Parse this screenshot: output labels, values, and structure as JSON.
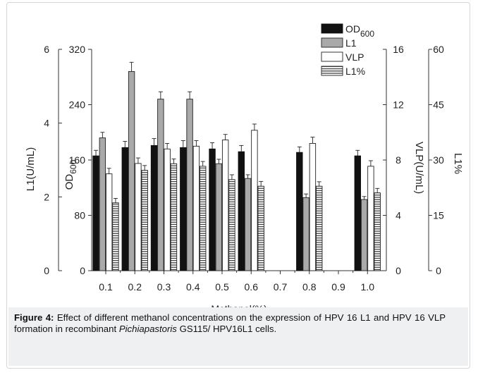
{
  "chart_data": {
    "type": "bar",
    "categories": [
      "0.1",
      "0.2",
      "0.3",
      "0.4",
      "0.5",
      "0.6",
      "0.7",
      "0.8",
      "0.9",
      "1.0"
    ],
    "xlabel": "Methanol(%)",
    "axes": {
      "l1": {
        "label": "L1(U/mL)",
        "min": 0,
        "max": 6,
        "ticks": [
          0,
          2,
          4,
          6
        ]
      },
      "od": {
        "label": "OD",
        "label_sub": "600",
        "min": 0,
        "max": 320,
        "ticks": [
          0,
          80,
          160,
          240,
          320
        ]
      },
      "vlp": {
        "label": "VLP(U/mL)",
        "min": 0,
        "max": 16,
        "ticks": [
          0,
          4,
          8,
          12,
          16
        ]
      },
      "pct": {
        "label": "L1%",
        "min": 0,
        "max": 60,
        "ticks": [
          0,
          15,
          30,
          45,
          60
        ]
      }
    },
    "series": [
      {
        "name": "OD",
        "name_sub": "600",
        "axis": "od",
        "style": "black",
        "values": [
          166,
          178,
          181,
          178,
          176,
          172,
          null,
          171,
          null,
          166
        ],
        "errors": [
          8,
          9,
          10,
          10,
          9,
          9,
          null,
          8,
          null,
          8
        ]
      },
      {
        "name": "L1",
        "axis": "l1",
        "style": "gray",
        "values": [
          3.6,
          5.4,
          4.65,
          4.65,
          2.9,
          2.5,
          null,
          1.98,
          null,
          1.93
        ],
        "errors": [
          0.15,
          0.25,
          0.2,
          0.2,
          0.12,
          0.1,
          null,
          0.1,
          null,
          0.08
        ]
      },
      {
        "name": "VLP",
        "axis": "vlp",
        "style": "white",
        "values": [
          7.0,
          7.75,
          8.8,
          9.0,
          9.45,
          10.15,
          null,
          9.2,
          null,
          7.55
        ],
        "errors": [
          0.4,
          0.4,
          0.4,
          0.4,
          0.4,
          0.45,
          null,
          0.45,
          null,
          0.4
        ]
      },
      {
        "name": "L1%",
        "axis": "pct",
        "style": "hatched",
        "values": [
          18.4,
          27.2,
          29.0,
          28.3,
          24.7,
          22.9,
          null,
          22.9,
          null,
          21.1
        ],
        "errors": [
          1.2,
          1.3,
          1.3,
          1.3,
          1.3,
          1.3,
          null,
          1.2,
          null,
          1.2
        ]
      }
    ]
  },
  "caption": {
    "label": "Figure 4:",
    "text_before_italic": " Effect of different methanol concentrations on the expression of HPV 16 L1 and HPV 16 VLP formation in recombinant ",
    "italic": "Pichiapastoris",
    "text_after_italic": " GS115/ HPV16L1 cells."
  }
}
